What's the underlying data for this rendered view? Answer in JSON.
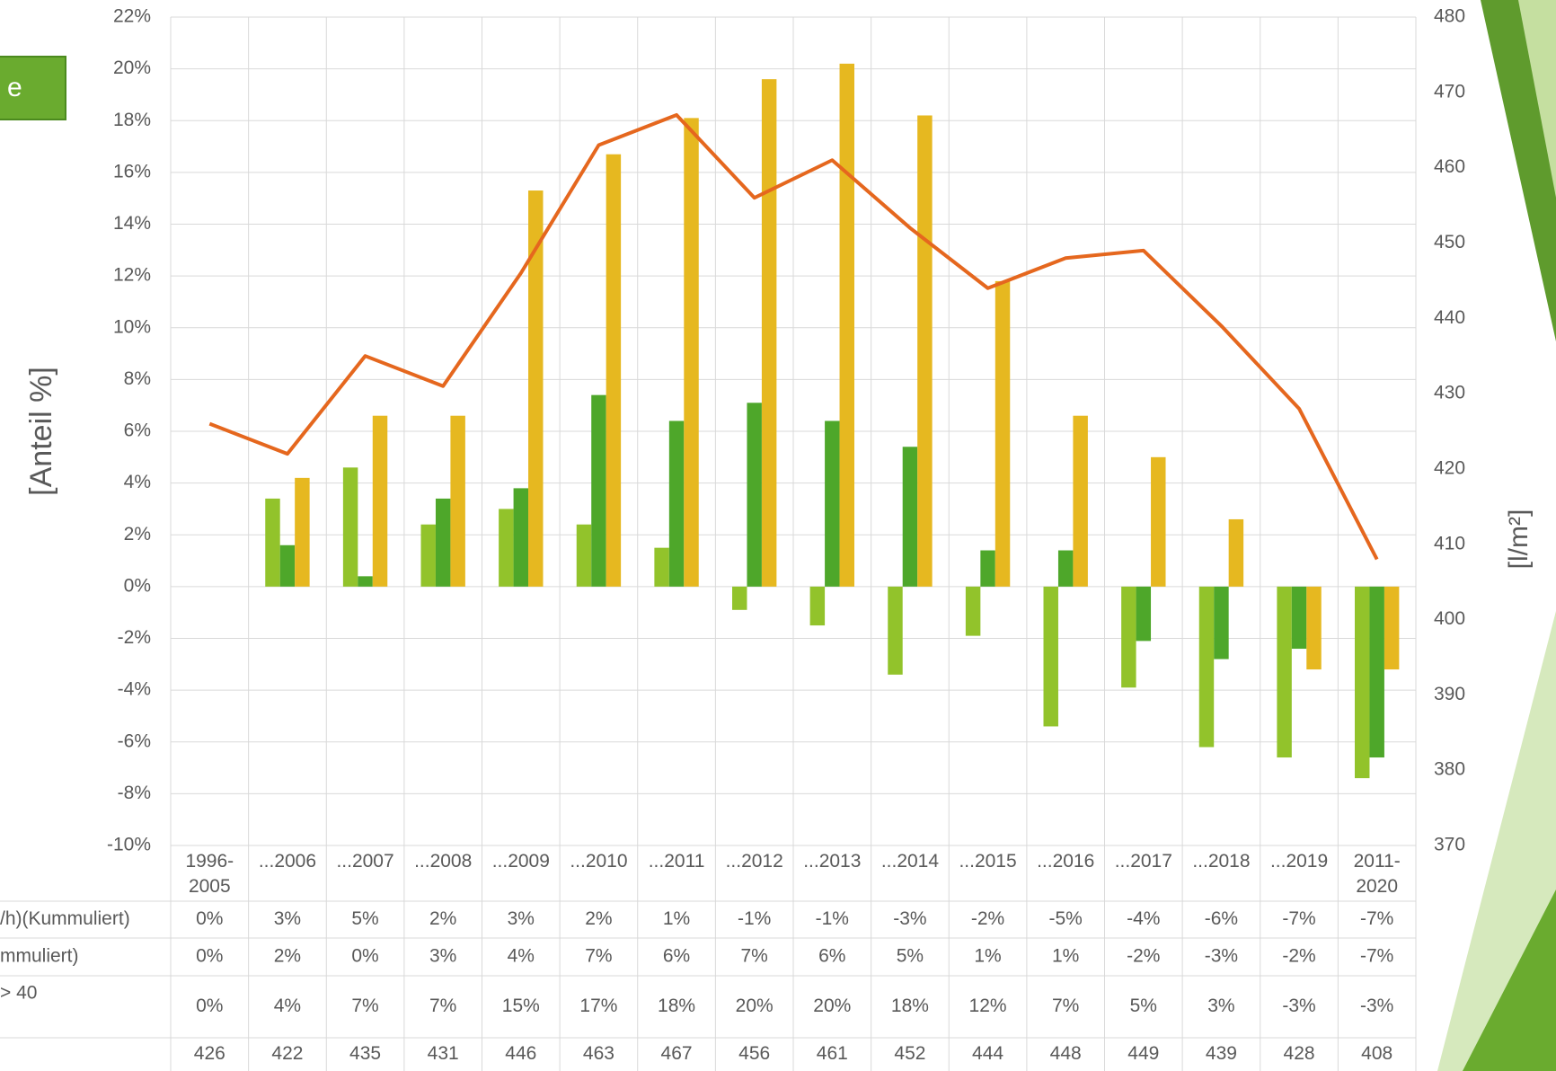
{
  "chart_data": {
    "type": "bar",
    "button": "e",
    "y_label": "[Anteil %]",
    "y2_label": "[l/m²]",
    "categories": [
      "1996-2005",
      "...2006",
      "...2007",
      "...2008",
      "...2009",
      "...2010",
      "...2011",
      "...2012",
      "...2013",
      "...2014",
      "...2015",
      "...2016",
      "...2017",
      "...2018",
      "...2019",
      "2011-2020"
    ],
    "series": [
      {
        "name": "/h)(Kummuliert)",
        "color": "#92c32b",
        "values": [
          0,
          3.4,
          4.6,
          2.4,
          3.0,
          2.4,
          1.5,
          -0.9,
          -1.5,
          -3.4,
          -1.9,
          -5.4,
          -3.9,
          -6.2,
          -6.6,
          -7.4
        ],
        "value_labels": [
          "0%",
          "3%",
          "5%",
          "2%",
          "3%",
          "2%",
          "1%",
          "-1%",
          "-1%",
          "-3%",
          "-2%",
          "-5%",
          "-4%",
          "-6%",
          "-7%",
          "-7%"
        ]
      },
      {
        "name": "mmuliert)",
        "color": "#4ea72a",
        "values": [
          0,
          1.6,
          0.4,
          3.4,
          3.8,
          7.4,
          6.4,
          7.1,
          6.4,
          5.4,
          1.4,
          1.4,
          -2.1,
          -2.8,
          -2.4,
          -6.6
        ],
        "value_labels": [
          "0%",
          "2%",
          "0%",
          "3%",
          "4%",
          "7%",
          "6%",
          "7%",
          "6%",
          "5%",
          "1%",
          "1%",
          "-2%",
          "-3%",
          "-2%",
          "-7%"
        ]
      },
      {
        "name": "> 40",
        "color": "#e6b820",
        "values": [
          0,
          4.2,
          6.6,
          6.6,
          15.3,
          16.7,
          18.1,
          19.6,
          20.2,
          18.2,
          11.8,
          6.6,
          5.0,
          2.6,
          -3.2,
          -3.2
        ],
        "value_labels": [
          "0%",
          "4%",
          "7%",
          "7%",
          "15%",
          "17%",
          "18%",
          "20%",
          "20%",
          "18%",
          "12%",
          "7%",
          "5%",
          "3%",
          "-3%",
          "-3%"
        ]
      },
      {
        "type": "line",
        "axis": "y2",
        "color": "#e5671e",
        "values": [
          426,
          422,
          435,
          431,
          446,
          463,
          467,
          456,
          461,
          452,
          444,
          448,
          449,
          439,
          428,
          408
        ]
      }
    ],
    "ylim": [
      -10,
      22
    ],
    "yticks": [
      {
        "value": -10,
        "label": "-10%"
      },
      {
        "value": -8,
        "label": "-8%"
      },
      {
        "value": -6,
        "label": "-6%"
      },
      {
        "value": -4,
        "label": "-4%"
      },
      {
        "value": -2,
        "label": "-2%"
      },
      {
        "value": 0,
        "label": "0%"
      },
      {
        "value": 2,
        "label": "2%"
      },
      {
        "value": 4,
        "label": "4%"
      },
      {
        "value": 6,
        "label": "6%"
      },
      {
        "value": 8,
        "label": "8%"
      },
      {
        "value": 10,
        "label": "10%"
      },
      {
        "value": 12,
        "label": "12%"
      },
      {
        "value": 14,
        "label": "14%"
      },
      {
        "value": 16,
        "label": "16%"
      },
      {
        "value": 18,
        "label": "18%"
      },
      {
        "value": 20,
        "label": "20%"
      },
      {
        "value": 22,
        "label": "22%"
      }
    ],
    "y2lim": [
      370,
      480
    ],
    "y2ticks": [
      370,
      380,
      390,
      400,
      410,
      420,
      430,
      440,
      450,
      460,
      470,
      480
    ],
    "grid": true
  }
}
